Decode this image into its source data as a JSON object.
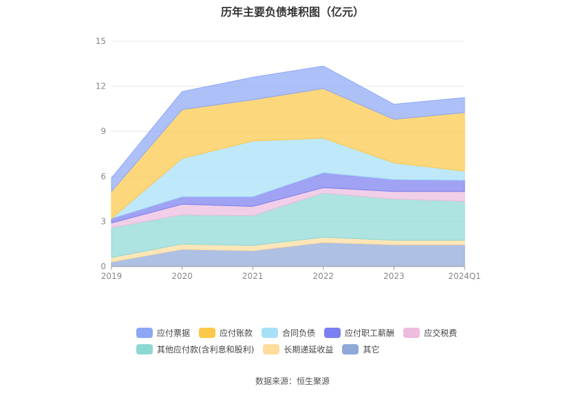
{
  "chart_data": {
    "type": "area",
    "stacked": true,
    "title": "历年主要负债堆积图（亿元）",
    "xlabel": "",
    "ylabel": "",
    "x": [
      "2019",
      "2020",
      "2021",
      "2022",
      "2023",
      "2024Q1"
    ],
    "ylim": [
      0,
      15
    ],
    "yticks": [
      "0",
      "3",
      "6",
      "9",
      "12",
      "15"
    ],
    "grid": true,
    "legend_placement": "bottom",
    "series": [
      {
        "name": "其它",
        "color": "#8fa8d8",
        "values": [
          0.3,
          1.15,
          1.05,
          1.6,
          1.45,
          1.45
        ]
      },
      {
        "name": "长期递延收益",
        "color": "#fddc9e",
        "values": [
          0.3,
          0.35,
          0.35,
          0.35,
          0.3,
          0.3
        ]
      },
      {
        "name": "其他应付款(含利息和股利)",
        "color": "#8dd8d4",
        "values": [
          2.0,
          1.95,
          2.0,
          2.95,
          2.75,
          2.6
        ]
      },
      {
        "name": "应交税费",
        "color": "#edbcdf",
        "values": [
          0.3,
          0.7,
          0.6,
          0.35,
          0.5,
          0.65
        ]
      },
      {
        "name": "应付职工薪酬",
        "color": "#7b7ff0",
        "values": [
          0.3,
          0.5,
          0.65,
          1.0,
          0.8,
          0.75
        ]
      },
      {
        "name": "合同负债",
        "color": "#a6e0f8",
        "values": [
          0.0,
          2.55,
          3.7,
          2.3,
          1.1,
          0.6
        ]
      },
      {
        "name": "应付账款",
        "color": "#fcc84a",
        "values": [
          1.8,
          3.25,
          2.75,
          3.3,
          2.9,
          3.9
        ]
      },
      {
        "name": "应付票据",
        "color": "#8da7f5",
        "values": [
          0.9,
          1.2,
          1.5,
          1.5,
          1.0,
          1.0
        ]
      }
    ]
  },
  "source": "数据来源：恒生聚源"
}
